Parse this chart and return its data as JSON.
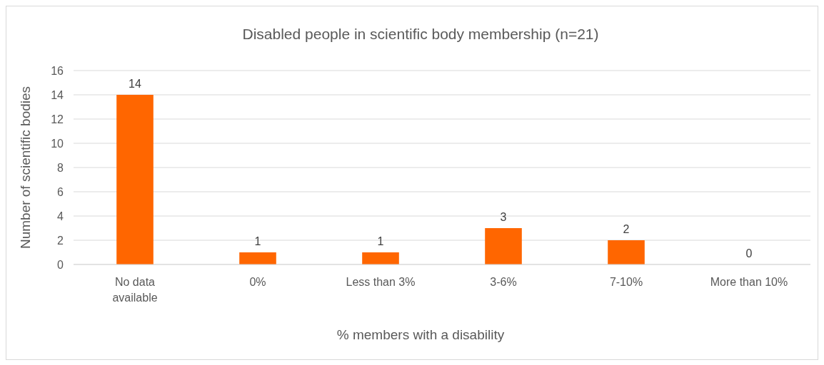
{
  "chart_data": {
    "type": "bar",
    "title": "Disabled people in scientific body membership (n=21)",
    "xlabel": "% members with a disability",
    "ylabel": "Number of scientific bodies",
    "categories": [
      "No data available",
      "0%",
      "Less than 3%",
      "3-6%",
      "7-10%",
      "More than 10%"
    ],
    "values": [
      14,
      1,
      1,
      3,
      2,
      0
    ],
    "color": "#ff6600",
    "ylim": [
      0,
      16
    ],
    "yticks": [
      0,
      2,
      4,
      6,
      8,
      10,
      12,
      14,
      16
    ],
    "grid": "y",
    "data_labels": true
  }
}
